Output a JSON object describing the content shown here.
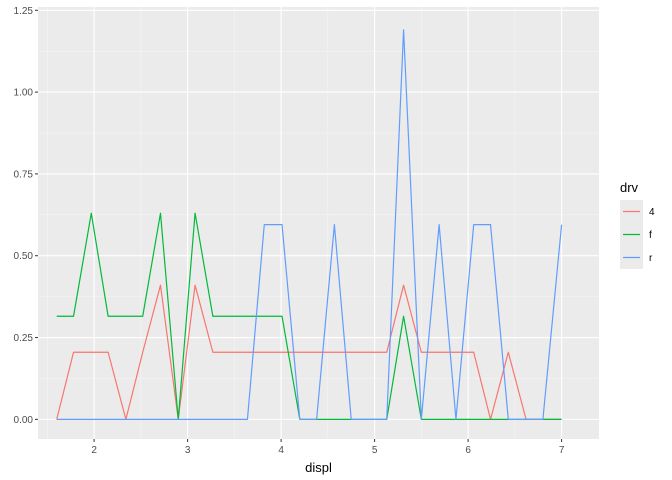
{
  "chart_data": {
    "type": "line",
    "xlabel": "displ",
    "ylabel": "",
    "xlim": [
      1.4,
      7.4
    ],
    "ylim": [
      -0.06,
      1.26
    ],
    "x_ticks": [
      2,
      3,
      4,
      5,
      6,
      7
    ],
    "x_tick_labels": [
      "2",
      "3",
      "4",
      "5",
      "6",
      "7"
    ],
    "y_ticks": [
      0,
      0.25,
      0.5,
      0.75,
      1.0,
      1.25
    ],
    "y_tick_labels": [
      "0.00",
      "0.25",
      "0.50",
      "0.75",
      "1.00",
      "1.25"
    ],
    "grid": true,
    "legend": {
      "title": "drv",
      "position": "right"
    },
    "series": [
      {
        "name": "4",
        "color": "#F8766D",
        "x": [
          1.6,
          1.78,
          1.97,
          2.15,
          2.34,
          2.52,
          2.71,
          2.9,
          3.08,
          3.27,
          3.45,
          3.64,
          3.82,
          4.01,
          4.2,
          4.38,
          4.57,
          4.75,
          4.94,
          5.13,
          5.31,
          5.5,
          5.69,
          5.87,
          6.06,
          6.24,
          6.43,
          6.62,
          6.8,
          7.0
        ],
        "y": [
          0.0,
          0.205,
          0.205,
          0.205,
          0.0,
          0.205,
          0.41,
          0.0,
          0.41,
          0.205,
          0.205,
          0.205,
          0.205,
          0.205,
          0.205,
          0.205,
          0.205,
          0.205,
          0.205,
          0.205,
          0.41,
          0.205,
          0.205,
          0.205,
          0.205,
          0.0,
          0.205,
          0.0,
          0.0,
          0.0
        ]
      },
      {
        "name": "f",
        "color": "#00BA38",
        "x": [
          1.6,
          1.78,
          1.97,
          2.15,
          2.34,
          2.52,
          2.71,
          2.9,
          3.08,
          3.27,
          3.45,
          3.64,
          3.82,
          4.01,
          4.2,
          4.38,
          4.57,
          4.75,
          4.94,
          5.13,
          5.31,
          5.5,
          5.69,
          5.87,
          6.06,
          6.24,
          6.43,
          6.62,
          6.8,
          7.0
        ],
        "y": [
          0.315,
          0.315,
          0.63,
          0.315,
          0.315,
          0.315,
          0.63,
          0.0,
          0.63,
          0.315,
          0.315,
          0.315,
          0.315,
          0.315,
          0.0,
          0.0,
          0.0,
          0.0,
          0.0,
          0.0,
          0.315,
          0.0,
          0.0,
          0.0,
          0.0,
          0.0,
          0.0,
          0.0,
          0.0,
          0.0
        ]
      },
      {
        "name": "r",
        "color": "#619CFF",
        "x": [
          1.6,
          1.78,
          1.97,
          2.15,
          2.34,
          2.52,
          2.71,
          2.9,
          3.08,
          3.27,
          3.45,
          3.64,
          3.82,
          4.01,
          4.2,
          4.38,
          4.57,
          4.75,
          4.94,
          5.13,
          5.31,
          5.5,
          5.69,
          5.87,
          6.06,
          6.24,
          6.43,
          6.62,
          6.8,
          7.0
        ],
        "y": [
          0.0,
          0.0,
          0.0,
          0.0,
          0.0,
          0.0,
          0.0,
          0.0,
          0.0,
          0.0,
          0.0,
          0.0,
          0.595,
          0.595,
          0.0,
          0.0,
          0.595,
          0.0,
          0.0,
          0.0,
          1.19,
          0.0,
          0.595,
          0.0,
          0.595,
          0.595,
          0.0,
          0.0,
          0.0,
          0.595
        ]
      }
    ]
  }
}
